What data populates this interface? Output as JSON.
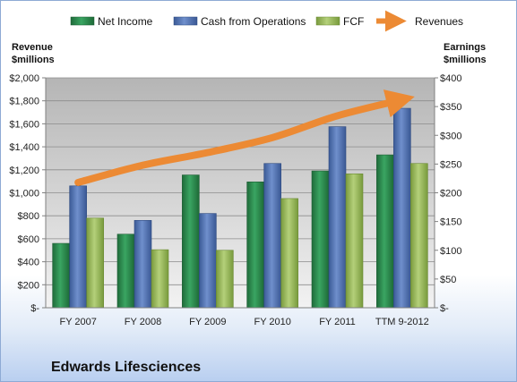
{
  "chart_data": {
    "type": "bar",
    "title": "Edwards Lifesciences",
    "categories": [
      "FY 2007",
      "FY 2008",
      "FY 2009",
      "FY 2010",
      "FY 2011",
      "TTM 9-2012"
    ],
    "series": [
      {
        "name": "Net Income",
        "axis": "right",
        "values": [
          112,
          128,
          231,
          219,
          238,
          266
        ],
        "color": "#2e8b4e"
      },
      {
        "name": "Cash from Operations",
        "axis": "left",
        "values": [
          1060,
          760,
          820,
          1255,
          1575,
          1735
        ],
        "color": "#4f6fae"
      },
      {
        "name": "FCF",
        "axis": "right",
        "values": [
          156,
          101,
          100,
          190,
          233,
          251
        ],
        "color": "#9bbb59"
      }
    ],
    "line_series": {
      "name": "Revenues",
      "axis": "left",
      "values": [
        1090,
        1240,
        1350,
        1480,
        1670,
        1810
      ],
      "color": "#ec8a34"
    },
    "left_axis": {
      "title_line1": "Revenue",
      "title_line2": "$millions",
      "min": 0,
      "max": 2000,
      "step": 200,
      "tick_labels": [
        "$-",
        "$200",
        "$400",
        "$600",
        "$800",
        "$1,000",
        "$1,200",
        "$1,400",
        "$1,600",
        "$1,800",
        "$2,000"
      ]
    },
    "right_axis": {
      "title_line1": "Earnings",
      "title_line2": "$millions",
      "min": 0,
      "max": 400,
      "step": 50,
      "tick_labels": [
        "$-",
        "$50",
        "$100",
        "$150",
        "$200",
        "$250",
        "$300",
        "$350",
        "$400"
      ]
    },
    "grid": true,
    "legend_position": "top"
  }
}
